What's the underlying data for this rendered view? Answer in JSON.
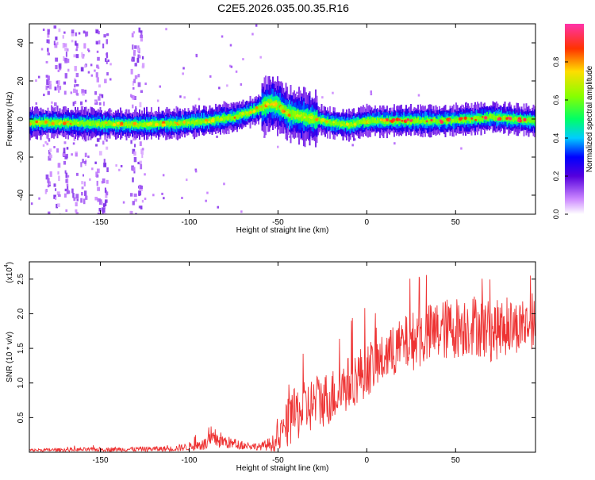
{
  "title": "C2E5.2026.035.00.35.R16",
  "chart_data": [
    {
      "type": "heatmap",
      "title": "C2E5.2026.035.00.35.R16",
      "xlabel": "Height of straight line (km)",
      "ylabel": "Frequency (Hz)",
      "xlim": [
        -190,
        95
      ],
      "ylim": [
        -50,
        50
      ],
      "xticks": [
        -150,
        -100,
        -50,
        0,
        50
      ],
      "yticks": [
        -40,
        -20,
        0,
        20,
        40
      ],
      "x_tick_labels": [
        "-150",
        "-100",
        "-50",
        "0",
        "50"
      ],
      "y_tick_labels": [
        "-40",
        "-20",
        "0",
        "20",
        "40"
      ],
      "colorbar": {
        "label": "Normalized spectral amplitude",
        "range": [
          0,
          1
        ],
        "ticks": [
          0.0,
          0.2,
          0.4,
          0.6,
          0.8
        ],
        "tick_labels": [
          "0.0",
          "0.2",
          "0.4",
          "0.6",
          "0.8"
        ]
      },
      "ridge": {
        "description_points_x": [
          -190,
          -170,
          -150,
          -130,
          -110,
          -90,
          -75,
          -65,
          -60,
          -55,
          -50,
          -45,
          -40,
          -35,
          -30,
          -25,
          -20,
          -10,
          0,
          10,
          20,
          40,
          60,
          70,
          80,
          95
        ],
        "description_points_y": [
          -2,
          -2,
          -2.5,
          -3,
          -2.5,
          -1,
          1,
          4,
          6,
          8,
          7,
          3,
          2,
          1,
          0,
          -1,
          -2,
          -3,
          -1,
          -1,
          -1,
          -1,
          0,
          1,
          0,
          -1
        ]
      }
    },
    {
      "type": "line",
      "title": "",
      "xlabel": "Height of straight line (km)",
      "ylabel": "SNR (10 * v/v)",
      "y_scale_label": "(x10",
      "y_scale_exp": "4",
      "xlim": [
        -190,
        95
      ],
      "ylim": [
        0,
        2.75
      ],
      "xticks": [
        -150,
        -100,
        -50,
        0,
        50
      ],
      "yticks": [
        0.5,
        1.0,
        1.5,
        2.0,
        2.5
      ],
      "x_tick_labels": [
        "-150",
        "-100",
        "-50",
        "0",
        "50"
      ],
      "y_tick_labels": [
        "0.5",
        "1.0",
        "1.5",
        "2.0",
        "2.5"
      ],
      "color": "#ee3333",
      "envelope_x": [
        -190,
        -150,
        -110,
        -100,
        -90,
        -85,
        -80,
        -75,
        -70,
        -60,
        -50,
        -45,
        -40,
        -30,
        -20,
        -10,
        0,
        10,
        20,
        30,
        40,
        50,
        60,
        70,
        80,
        95
      ],
      "envelope_mean": [
        0.03,
        0.04,
        0.05,
        0.08,
        0.12,
        0.2,
        0.15,
        0.12,
        0.1,
        0.08,
        0.15,
        0.4,
        0.55,
        0.7,
        0.8,
        1.0,
        1.2,
        1.35,
        1.55,
        1.65,
        1.75,
        1.8,
        1.85,
        1.75,
        1.8,
        1.85
      ],
      "envelope_spread": [
        0.02,
        0.03,
        0.04,
        0.06,
        0.1,
        0.15,
        0.1,
        0.08,
        0.06,
        0.05,
        0.15,
        0.35,
        0.4,
        0.4,
        0.4,
        0.4,
        0.4,
        0.35,
        0.4,
        0.45,
        0.45,
        0.45,
        0.45,
        0.45,
        0.4,
        0.35
      ]
    }
  ]
}
